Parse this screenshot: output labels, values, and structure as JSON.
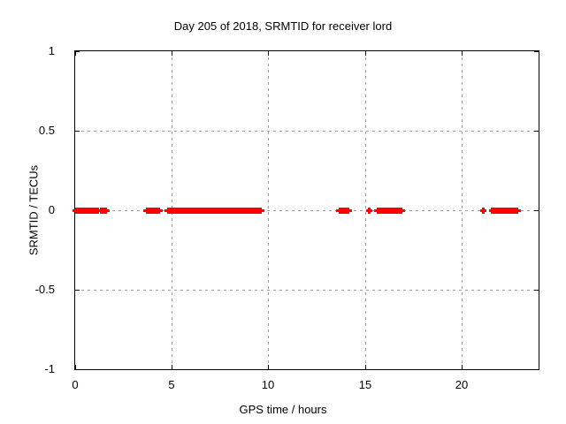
{
  "title": "Day 205 of 2018, SRMTID for receiver lord",
  "colors": {
    "data": "#ff0000",
    "grid": "#9e9e9e",
    "axis": "#000000",
    "background": "#ffffff"
  },
  "chart_data": {
    "type": "scatter",
    "title": "Day 205 of 2018, SRMTID for receiver lord",
    "xlabel": "GPS time / hours",
    "ylabel": "SRMTID / TECUs",
    "xlim": [
      0,
      24
    ],
    "ylim": [
      -1,
      1
    ],
    "grid": true,
    "legend_position": "none",
    "marker": "plus",
    "marker_color": "#ff0000",
    "x_ticks": [
      {
        "value": 0,
        "label": "0"
      },
      {
        "value": 5,
        "label": "5"
      },
      {
        "value": 10,
        "label": "10"
      },
      {
        "value": 15,
        "label": "15"
      },
      {
        "value": 20,
        "label": "20"
      }
    ],
    "y_ticks": [
      {
        "value": -1,
        "label": "-1"
      },
      {
        "value": -0.5,
        "label": "-0.5"
      },
      {
        "value": 0,
        "label": "0"
      },
      {
        "value": 0.5,
        "label": "0.5"
      },
      {
        "value": 1,
        "label": "1"
      }
    ],
    "series": [
      {
        "name": "SRMTID",
        "y_value": 0,
        "dense_segments_hours": [
          [
            0.05,
            1.21
          ],
          [
            1.33,
            1.61
          ],
          [
            3.71,
            4.35
          ],
          [
            4.81,
            9.6
          ],
          [
            13.68,
            14.14
          ],
          [
            15.65,
            16.28
          ],
          [
            16.35,
            16.88
          ],
          [
            21.73,
            22.9
          ]
        ],
        "isolated_points_hours": [
          15.21,
          21.16,
          21.61
        ]
      }
    ]
  }
}
